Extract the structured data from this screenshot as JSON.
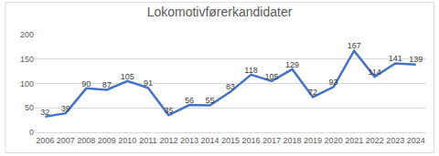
{
  "chart_data": {
    "type": "line",
    "title": "Lokomotivførerkandidater",
    "categories": [
      "2006",
      "2007",
      "2008",
      "2009",
      "2010",
      "2011",
      "2012",
      "2013",
      "2014",
      "2015",
      "2016",
      "2017",
      "2018",
      "2019",
      "2020",
      "2021",
      "2022",
      "2023",
      "2024"
    ],
    "values": [
      32,
      39,
      90,
      87,
      105,
      91,
      35,
      56,
      55,
      83,
      118,
      105,
      129,
      72,
      93,
      167,
      114,
      141,
      139
    ],
    "color": "#4472c4",
    "ylim": [
      0,
      200
    ],
    "yticks": [
      0,
      50,
      100,
      150,
      200
    ],
    "grid": true,
    "data_labels": true
  }
}
